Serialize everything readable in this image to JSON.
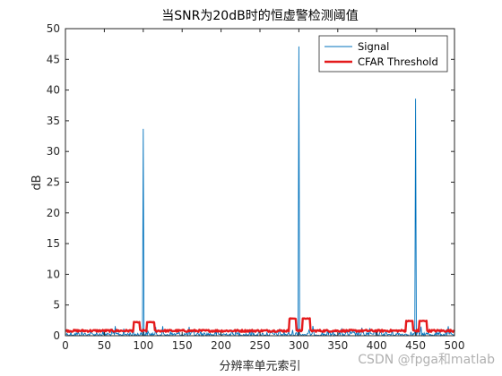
{
  "chart_data": {
    "type": "line",
    "title": "当SNR为20dB时的恒虚警检测阈值",
    "xlabel": "分辨率单元索引",
    "ylabel": "dB",
    "xlim": [
      0,
      500
    ],
    "ylim": [
      0,
      50
    ],
    "xticks": [
      0,
      50,
      100,
      150,
      200,
      250,
      300,
      350,
      400,
      450,
      500
    ],
    "yticks": [
      0,
      5,
      10,
      15,
      20,
      25,
      30,
      35,
      40,
      45,
      50
    ],
    "grid": false,
    "legend_position": "top-right",
    "series": [
      {
        "name": "Signal",
        "color": "#0072BD",
        "noise_level_approx": 0.5,
        "peaks": [
          {
            "x": 100,
            "y": 33.7
          },
          {
            "x": 300,
            "y": 47.1
          },
          {
            "x": 450,
            "y": 38.6
          }
        ]
      },
      {
        "name": "CFAR Threshold",
        "color": "#E41A1C",
        "baseline_approx": 0.8,
        "bumps": [
          {
            "x_from": 88,
            "x_to": 95,
            "y": 2.2
          },
          {
            "x_from": 105,
            "x_to": 114,
            "y": 2.2
          },
          {
            "x_from": 288,
            "x_to": 296,
            "y": 2.8
          },
          {
            "x_from": 305,
            "x_to": 314,
            "y": 2.8
          },
          {
            "x_from": 438,
            "x_to": 446,
            "y": 2.4
          },
          {
            "x_from": 455,
            "x_to": 464,
            "y": 2.4
          }
        ]
      }
    ]
  },
  "watermark": "CSDN @fpga和matlab"
}
